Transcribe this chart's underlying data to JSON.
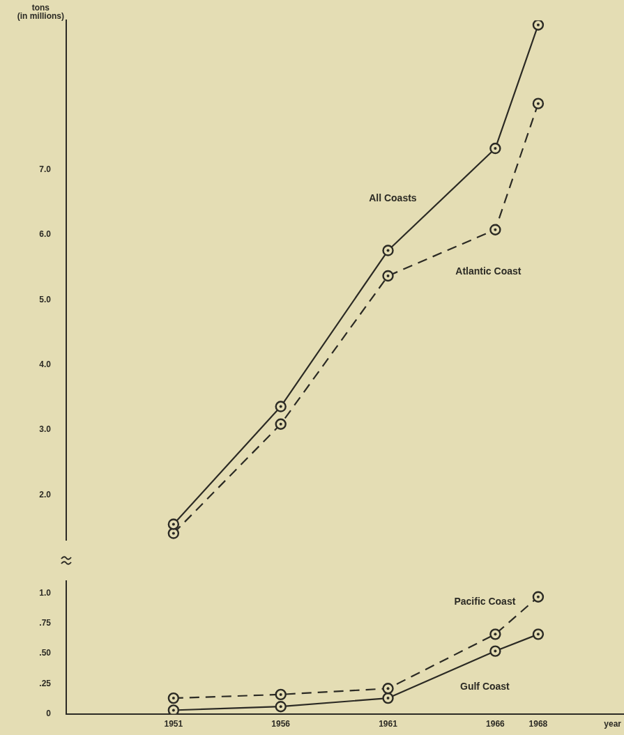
{
  "chart_data": [
    {
      "type": "line",
      "ylabel": "tons\n(in millions)",
      "x": [
        1951,
        1956,
        1961,
        1966,
        1968
      ],
      "ylim": [
        1.3,
        9.3
      ],
      "yticks": [
        {
          "value": 2,
          "label": "2.0"
        },
        {
          "value": 3,
          "label": "3.0"
        },
        {
          "value": 4,
          "label": "4.0"
        },
        {
          "value": 5,
          "label": "5.0"
        },
        {
          "value": 6,
          "label": "6.0"
        },
        {
          "value": 7,
          "label": "7.0"
        }
      ],
      "tick_labels": "y",
      "marker": "circle",
      "grid": false,
      "legend": false,
      "series": [
        {
          "name": "All Coasts",
          "color": "#2b2a24",
          "line_style": "solid",
          "values": [
            1.55,
            3.36,
            5.76,
            7.33,
            9.23
          ]
        },
        {
          "name": "Atlantic Coast",
          "color": "#2b2a24",
          "line_style": "dashed",
          "values": [
            1.41,
            3.09,
            5.37,
            6.08,
            8.02
          ]
        }
      ]
    },
    {
      "type": "line",
      "xlabel": "year",
      "x": [
        1951,
        1956,
        1961,
        1966,
        1968
      ],
      "xlim": [
        1946,
        1972
      ],
      "xticks": [
        1951,
        1956,
        1961,
        1966,
        1968
      ],
      "ylim": [
        0,
        1.1
      ],
      "yticks": [
        0,
        {
          "value": 0.25,
          "label": ".25"
        },
        {
          "value": 0.5,
          "label": ".50"
        },
        {
          "value": 0.75,
          "label": ".75"
        },
        {
          "value": 1,
          "label": "1.0"
        }
      ],
      "marker": "circle",
      "grid": false,
      "legend": false,
      "series": [
        {
          "name": "Pacific Coast",
          "color": "#2b2a24",
          "line_style": "dashed",
          "values": [
            0.13,
            0.16,
            0.21,
            0.66,
            0.97
          ]
        },
        {
          "name": "Gulf Coast",
          "color": "#2b2a24",
          "line_style": "solid",
          "values": [
            0.03,
            0.06,
            0.13,
            0.52,
            0.66
          ]
        }
      ]
    }
  ]
}
